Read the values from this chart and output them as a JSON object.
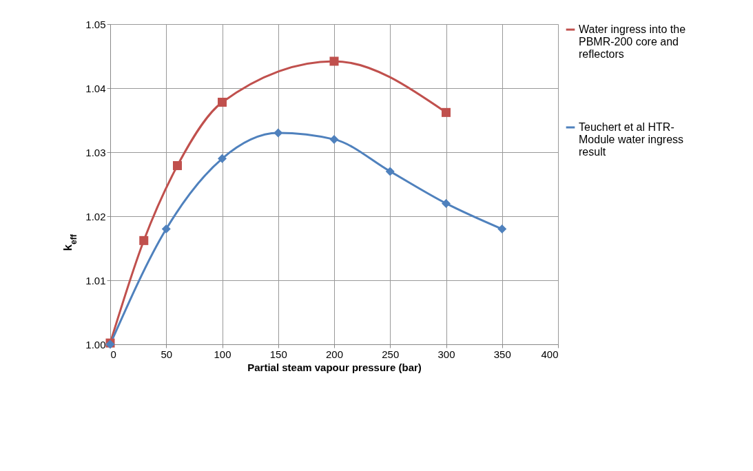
{
  "chart_data": {
    "type": "line",
    "xlabel": "Partial steam vapour pressure (bar)",
    "ylabel": "k$_{eff}$",
    "xlim": [
      0,
      400
    ],
    "xticks": [
      0,
      50,
      100,
      150,
      200,
      250,
      300,
      350,
      400
    ],
    "ylim": [
      1.0,
      1.05
    ],
    "yticks": [
      {
        "value": 1.0,
        "label": "1.00"
      },
      {
        "value": 1.01,
        "label": "1.01"
      },
      {
        "value": 1.02,
        "label": "1.02"
      },
      {
        "value": 1.03,
        "label": "1.03"
      },
      {
        "value": 1.04,
        "label": "1.04"
      },
      {
        "value": 1.05,
        "label": "1.05"
      }
    ],
    "grid": true,
    "legend": "right",
    "line_style": "solid",
    "series": [
      {
        "name": "Water ingress into the PBMR-200 core and reflectors",
        "color": "#c0504d",
        "marker": "square",
        "x": [
          0,
          30,
          60,
          100,
          200,
          300
        ],
        "values": [
          1.0002,
          1.0162,
          1.0279,
          1.0378,
          1.0442,
          1.0362
        ]
      },
      {
        "name": "Teuchert et al HTR-Module water ingress result",
        "color": "#4f81bd",
        "marker": "diamond",
        "x": [
          0,
          50,
          100,
          150,
          200,
          250,
          300,
          350
        ],
        "values": [
          1.0,
          1.018,
          1.029,
          1.033,
          1.032,
          1.027,
          1.022,
          1.018
        ]
      }
    ]
  }
}
